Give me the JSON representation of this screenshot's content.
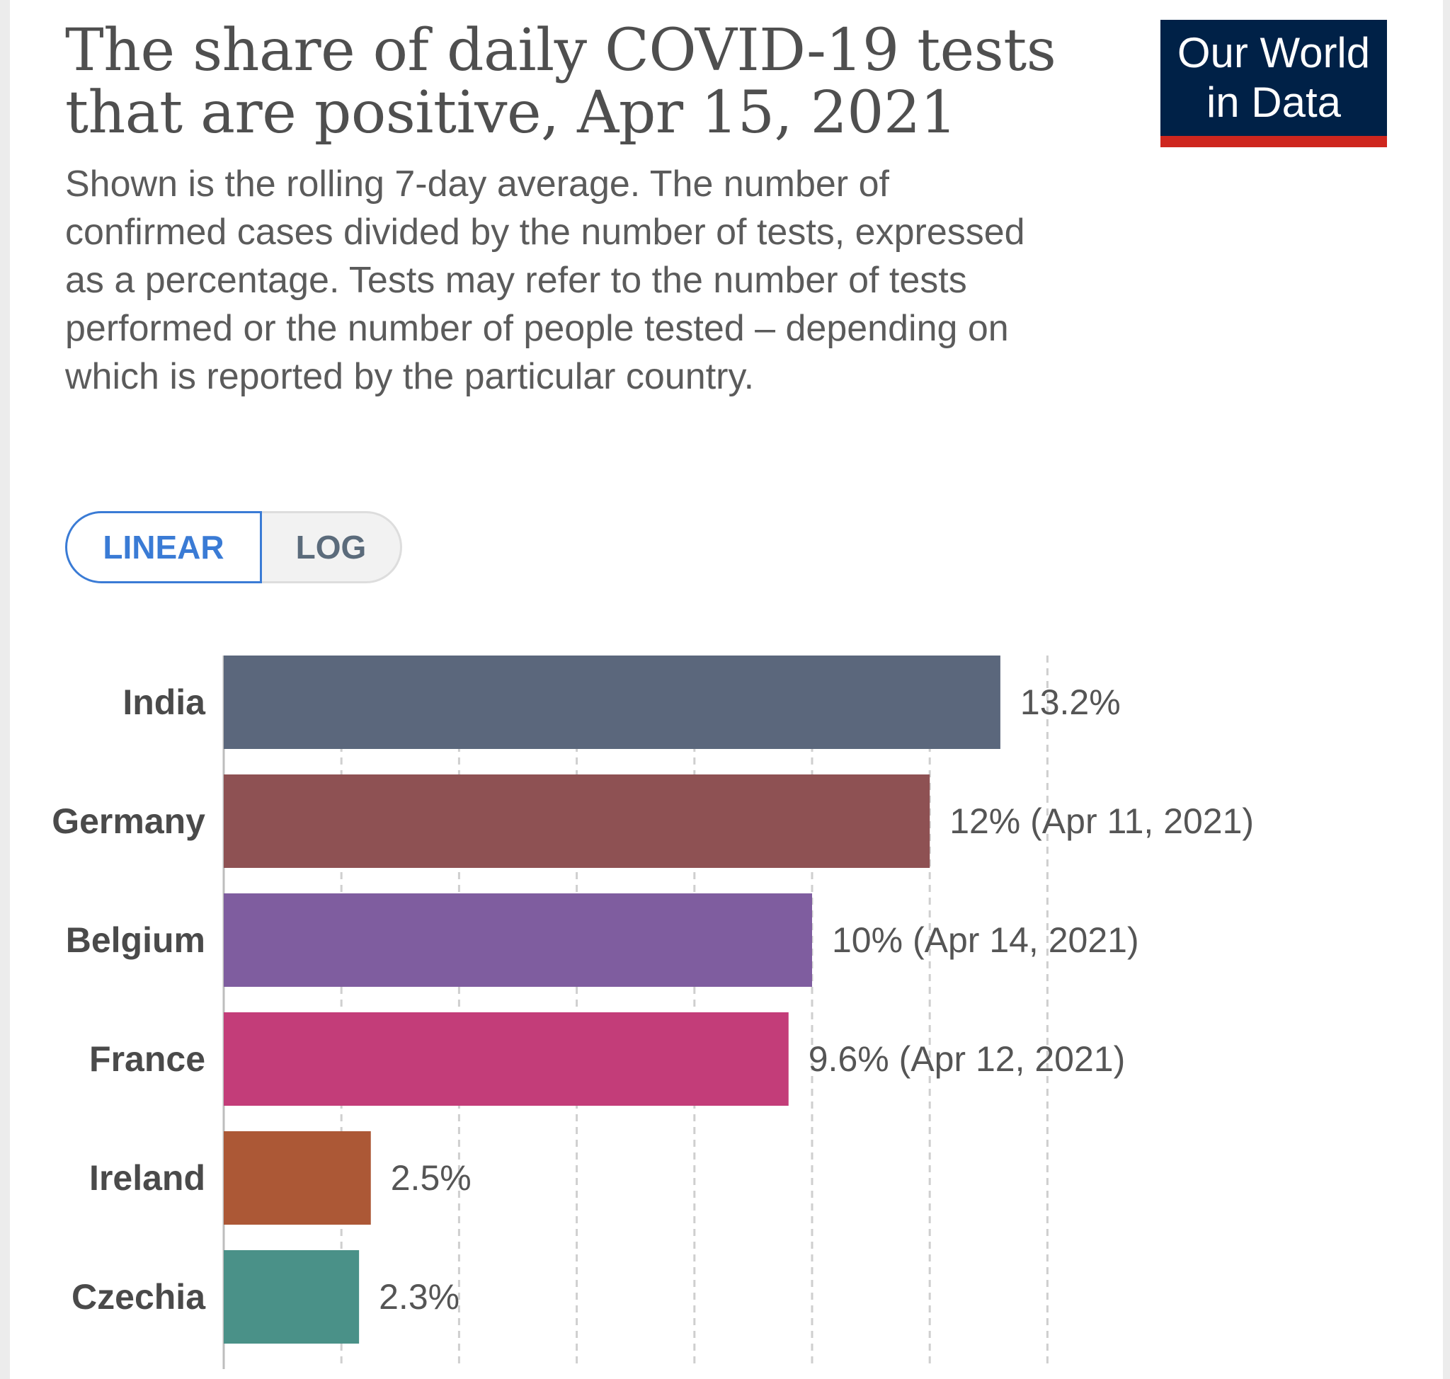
{
  "header": {
    "title": "The share of daily COVID-19 tests that are positive, Apr 15, 2021",
    "subtitle": "Shown is the rolling 7-day average. The number of confirmed cases divided by the number of tests, expressed as a percentage. Tests may refer to the number of tests performed or the number of people tested – depending on which is reported by the particular country."
  },
  "logo": {
    "line1": "Our World",
    "line2": "in Data"
  },
  "toggle": {
    "linear_label": "LINEAR",
    "log_label": "LOG",
    "active": "LINEAR"
  },
  "chart_data": {
    "type": "bar",
    "orientation": "horizontal",
    "categories": [
      "India",
      "Germany",
      "Belgium",
      "France",
      "Ireland",
      "Czechia"
    ],
    "values": [
      13.2,
      12,
      10,
      9.6,
      2.5,
      2.3
    ],
    "value_labels": [
      "13.2%",
      "12% (Apr 11, 2021)",
      "10% (Apr 14, 2021)",
      "9.6% (Apr 12, 2021)",
      "2.5%",
      "2.3%"
    ],
    "colors": [
      "#5b677c",
      "#8e5153",
      "#7f5d9f",
      "#c33d79",
      "#ac5836",
      "#4a9188"
    ],
    "xlim": [
      0,
      14
    ],
    "grid_step": 2,
    "grid": true,
    "title": "",
    "xlabel": "",
    "ylabel": ""
  }
}
